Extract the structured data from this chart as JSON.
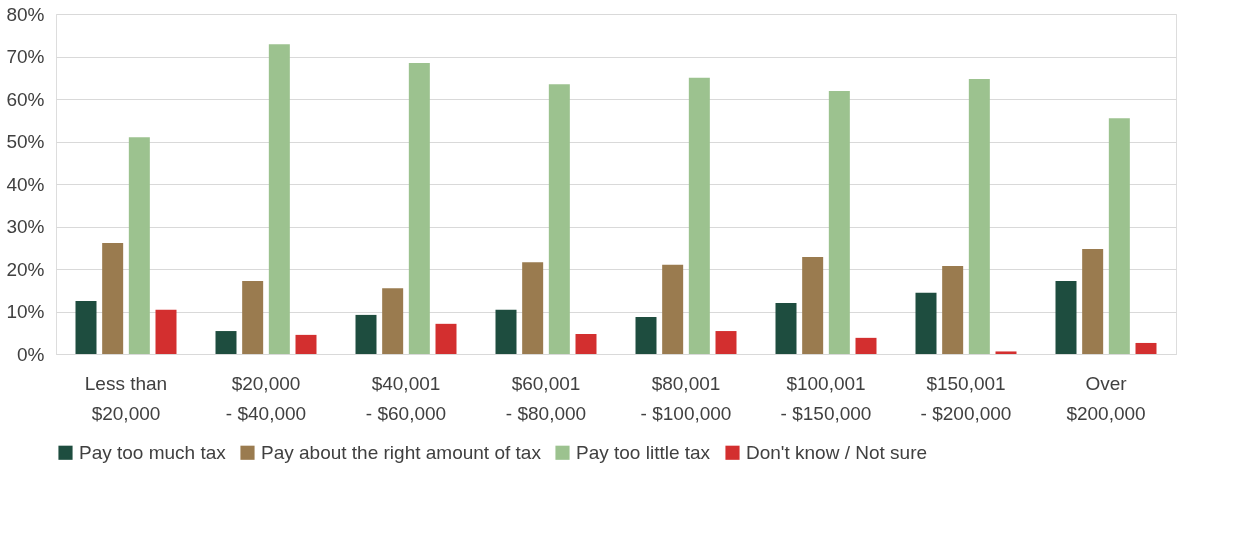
{
  "chart_data": {
    "type": "bar",
    "categories": [
      "Less than\n$20,000",
      "$20,000\n- $40,000",
      "$40,001\n- $60,000",
      "$60,001\n- $80,000",
      "$80,001\n- $100,000",
      "$100,001\n- $150,000",
      "$150,001\n- $200,000",
      "Over\n$200,000"
    ],
    "series": [
      {
        "name": "Pay too much tax",
        "color": "#1e4d3f",
        "values": [
          12.5,
          5.4,
          9.2,
          10.4,
          8.7,
          12.0,
          14.4,
          17.2
        ]
      },
      {
        "name": "Pay about the right amount of tax",
        "color": "#9a7b4f",
        "values": [
          26.1,
          17.2,
          15.5,
          21.6,
          21.0,
          22.8,
          20.7,
          24.7
        ]
      },
      {
        "name": "Pay too little tax",
        "color": "#9cc28f",
        "values": [
          51.0,
          72.9,
          68.5,
          63.5,
          65.0,
          61.9,
          64.7,
          55.5
        ]
      },
      {
        "name": "Don't know / Not sure",
        "color": "#d32f2f",
        "values": [
          10.4,
          4.5,
          7.1,
          4.7,
          5.4,
          3.8,
          0.6,
          2.6
        ]
      }
    ],
    "ylim": [
      0,
      80
    ],
    "yticks": [
      {
        "value": 0,
        "label": "0%"
      },
      {
        "value": 10,
        "label": "10%"
      },
      {
        "value": 20,
        "label": "20%"
      },
      {
        "value": 30,
        "label": "30%"
      },
      {
        "value": 40,
        "label": "40%"
      },
      {
        "value": 50,
        "label": "50%"
      },
      {
        "value": 60,
        "label": "60%"
      },
      {
        "value": 70,
        "label": "70%"
      },
      {
        "value": 80,
        "label": "80%"
      }
    ],
    "grid": "y",
    "legend": "bottom"
  }
}
